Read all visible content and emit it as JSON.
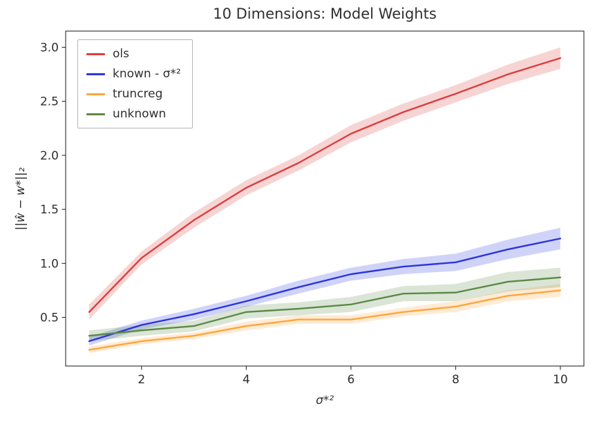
{
  "title": "10 Dimensions: Model Weights",
  "chart_data": {
    "type": "line",
    "title": "10 Dimensions: Model Weights",
    "xlabel": "σ*²",
    "ylabel": "||ŵ − w*||₂",
    "grid": false,
    "legend_position": "upper left",
    "x": [
      1,
      2,
      3,
      4,
      5,
      6,
      7,
      8,
      9,
      10
    ],
    "xlim": [
      0.55,
      10.45
    ],
    "ylim": [
      0.05,
      3.15
    ],
    "xticks": [
      2,
      4,
      6,
      8,
      10
    ],
    "xtick_labels": [
      "2",
      "4",
      "6",
      "8",
      "10"
    ],
    "yticks": [
      0.5,
      1.0,
      1.5,
      2.0,
      2.5,
      3.0
    ],
    "ytick_labels": [
      "0.5",
      "1.0",
      "1.5",
      "2.0",
      "2.5",
      "3.0"
    ],
    "series": [
      {
        "name": "ols",
        "color": "#dc3d3d",
        "values": [
          0.55,
          1.05,
          1.4,
          1.7,
          1.93,
          2.2,
          2.4,
          2.57,
          2.75,
          2.9
        ],
        "band": [
          0.07,
          0.06,
          0.07,
          0.07,
          0.07,
          0.08,
          0.08,
          0.08,
          0.09,
          0.1
        ]
      },
      {
        "name": "known - σ*²",
        "color": "#2b35dd",
        "values": [
          0.28,
          0.43,
          0.53,
          0.65,
          0.78,
          0.9,
          0.97,
          1.01,
          1.13,
          1.23
        ],
        "band": [
          0.04,
          0.04,
          0.05,
          0.05,
          0.06,
          0.06,
          0.07,
          0.08,
          0.09,
          0.1
        ]
      },
      {
        "name": "truncreg",
        "color": "#ffa53b",
        "values": [
          0.2,
          0.28,
          0.33,
          0.42,
          0.48,
          0.48,
          0.55,
          0.6,
          0.7,
          0.75
        ],
        "band": [
          0.03,
          0.03,
          0.03,
          0.04,
          0.04,
          0.04,
          0.04,
          0.05,
          0.05,
          0.06
        ]
      },
      {
        "name": "unknown",
        "color": "#5a8a46",
        "values": [
          0.33,
          0.38,
          0.42,
          0.55,
          0.58,
          0.62,
          0.72,
          0.73,
          0.83,
          0.87
        ],
        "band": [
          0.05,
          0.05,
          0.05,
          0.06,
          0.06,
          0.07,
          0.07,
          0.08,
          0.09,
          0.09
        ]
      }
    ]
  }
}
